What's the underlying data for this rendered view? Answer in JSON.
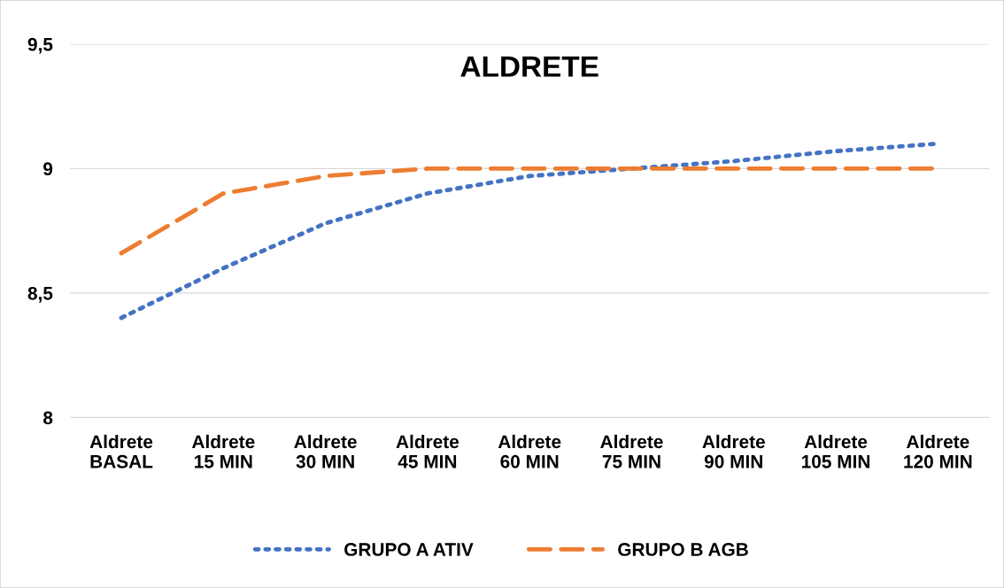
{
  "chart_data": {
    "type": "line",
    "title": "ALDRETE",
    "categories": [
      "Aldrete\nBASAL",
      "Aldrete\n15 MIN",
      "Aldrete\n30 MIN",
      "Aldrete\n45 MIN",
      "Aldrete\n60 MIN",
      "Aldrete\n75 MIN",
      "Aldrete\n90 MIN",
      "Aldrete\n105 MIN",
      "Aldrete\n120 MIN"
    ],
    "series": [
      {
        "name": "GRUPO A ATIV",
        "color": "#4472c4",
        "line_style": "dotted",
        "values": [
          8.4,
          8.6,
          8.78,
          8.9,
          8.97,
          9.0,
          9.03,
          9.07,
          9.1
        ]
      },
      {
        "name": "GRUPO B AGB",
        "color": "#ed7d31",
        "line_style": "dashed",
        "values": [
          8.66,
          8.9,
          8.97,
          9.0,
          9.0,
          9.0,
          9.0,
          9.0,
          9.0
        ]
      }
    ],
    "ylim": [
      8,
      9.5
    ],
    "yticks": [
      {
        "value": 8,
        "label": "8"
      },
      {
        "value": 8.5,
        "label": "8,5"
      },
      {
        "value": 9,
        "label": "9"
      },
      {
        "value": 9.5,
        "label": "9,5"
      }
    ],
    "grid": "y",
    "legend": "bottom",
    "marker": "none"
  }
}
